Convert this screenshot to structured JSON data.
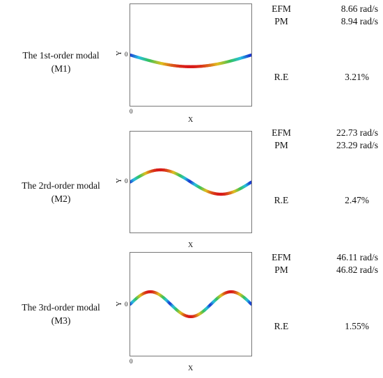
{
  "rows": [
    {
      "title": "The 1st-order modal",
      "code": "(M1)",
      "y_axis": "Y",
      "x_axis": "X",
      "y_zero": "0",
      "x_zero": "0",
      "efm_label": "EFM",
      "efm_value": "8.66 rad/s",
      "pm_label": "PM",
      "pm_value": "8.94 rad/s",
      "re_label": "R.E",
      "re_value": "3.21%",
      "half_periods": 1,
      "sign": -1
    },
    {
      "title": "The 2rd-order modal",
      "code": "(M2)",
      "y_axis": "Y",
      "x_axis": "X",
      "y_zero": "0",
      "x_zero": "",
      "efm_label": "EFM",
      "efm_value": "22.73 rad/s",
      "pm_label": "PM",
      "pm_value": "23.29 rad/s",
      "re_label": "R.E",
      "re_value": "2.47%",
      "half_periods": 2,
      "sign": 1
    },
    {
      "title": "The 3rd-order modal",
      "code": "(M3)",
      "y_axis": "Y",
      "x_axis": "X",
      "y_zero": "0",
      "x_zero": "0",
      "efm_label": "EFM",
      "efm_value": "46.11 rad/s",
      "pm_label": "PM",
      "pm_value": "46.82 rad/s",
      "re_label": "R.E",
      "re_value": "1.55%",
      "half_periods": 3,
      "sign": 1
    }
  ],
  "colors": {
    "low": "#1a2fd0",
    "mid_low": "#27c0e0",
    "mid": "#38c25a",
    "mid_high": "#e0c020",
    "high": "#d81818",
    "frame": "#777777"
  }
}
